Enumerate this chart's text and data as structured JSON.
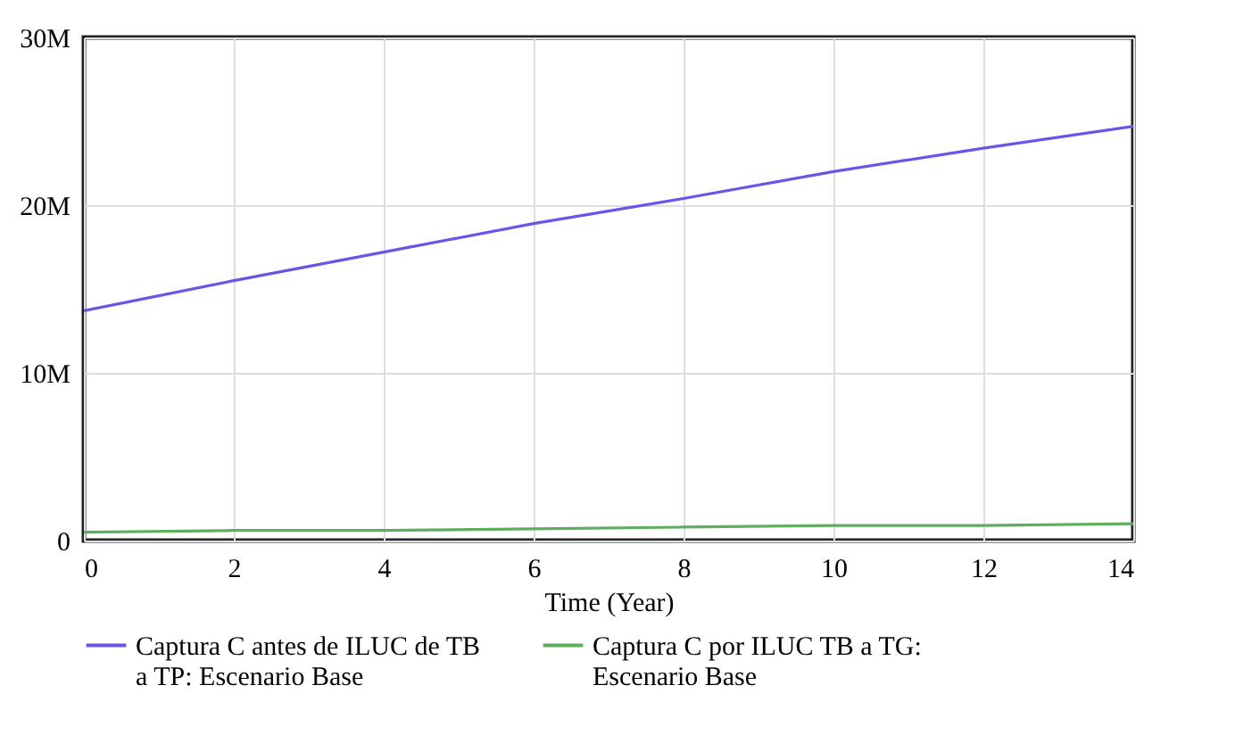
{
  "chart_data": {
    "type": "line",
    "xlabel": "Time (Year)",
    "x": [
      0,
      2,
      4,
      6,
      8,
      10,
      12,
      14
    ],
    "series": [
      {
        "name": "Captura C antes de ILUC de TB a TP: Escenario Base",
        "color": "#6a55e8",
        "values": [
          13700000,
          15500000,
          17200000,
          18900000,
          20400000,
          22000000,
          23400000,
          24700000
        ]
      },
      {
        "name": "Captura C por ILUC TB a TG: Escenario Base",
        "color": "#5fae5f",
        "values": [
          500000,
          600000,
          600000,
          700000,
          800000,
          900000,
          900000,
          1000000
        ]
      }
    ],
    "xlim": [
      0,
      14
    ],
    "xticks": [
      0,
      2,
      4,
      6,
      8,
      10,
      12,
      14
    ],
    "ylim": [
      0,
      30000000
    ],
    "yticks": [
      {
        "value": 0,
        "label": "0"
      },
      {
        "value": 10000000,
        "label": "10M"
      },
      {
        "value": 20000000,
        "label": "20M"
      },
      {
        "value": 30000000,
        "label": "30M"
      }
    ],
    "grid": true,
    "legend": "bottom",
    "marker": "none",
    "line_style": "solid"
  }
}
